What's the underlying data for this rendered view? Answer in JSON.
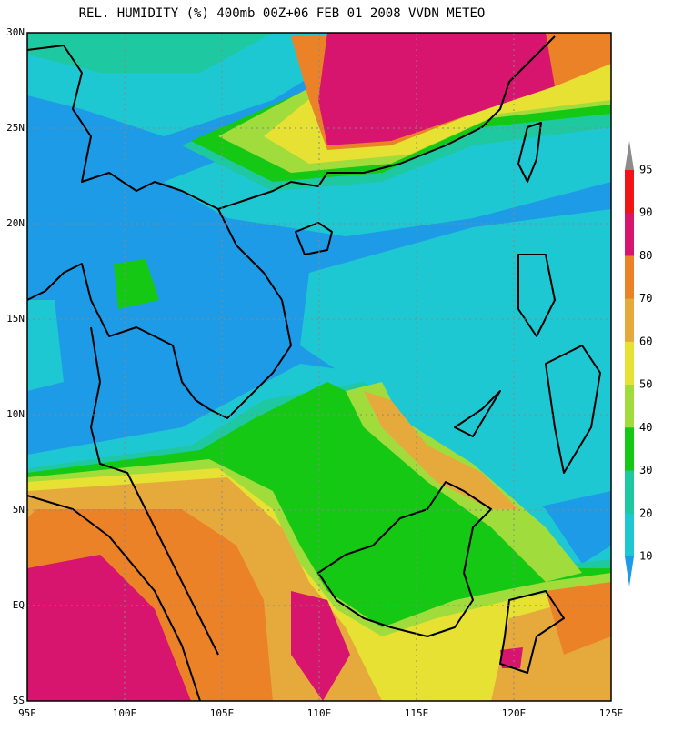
{
  "title": "REL. HUMIDITY (%) 400mb 00Z+06 FEB 01 2008 VVDN METEO",
  "map": {
    "lon_labels": [
      "95E",
      "100E",
      "105E",
      "110E",
      "115E",
      "120E",
      "125E"
    ],
    "lat_labels": [
      "30N",
      "25N",
      "20N",
      "15N",
      "10N",
      "5N",
      "EQ",
      "5S"
    ]
  },
  "colorbar": {
    "levels": [
      95,
      90,
      80,
      70,
      60,
      50,
      40,
      30,
      20,
      10
    ],
    "colors": [
      "#8c8c8c",
      "#f01414",
      "#d7146e",
      "#eb8228",
      "#e6aa3c",
      "#e6e132",
      "#a0dc3c",
      "#14c814",
      "#1ec8a0",
      "#1ec8d2",
      "#1e9be6"
    ]
  }
}
